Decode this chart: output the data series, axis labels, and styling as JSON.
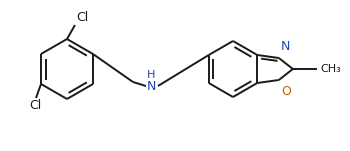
{
  "background_color": "#ffffff",
  "line_color": "#1a1a1a",
  "bond_width": 1.4,
  "font_size_atoms": 9,
  "n_color": "#2244aa",
  "o_color": "#bb6600",
  "figsize": [
    3.5,
    1.51
  ],
  "dpi": 100,
  "xlim": [
    0,
    350
  ],
  "ylim": [
    0,
    151
  ]
}
